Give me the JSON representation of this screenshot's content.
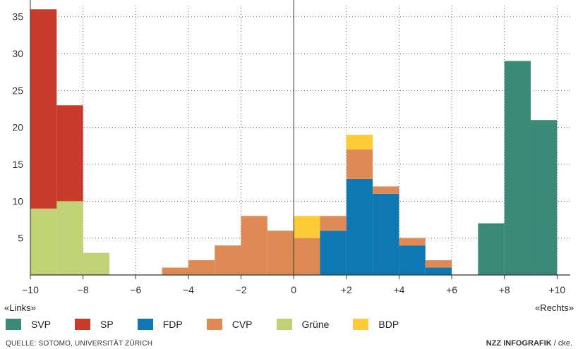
{
  "chart_data": {
    "type": "bar",
    "stacked": true,
    "xlim": [
      -10,
      10.5
    ],
    "ylim": [
      0,
      36.5
    ],
    "x_ticks": [
      {
        "value": -10,
        "label": "−10"
      },
      {
        "value": -8,
        "label": "−8"
      },
      {
        "value": -6,
        "label": "−6"
      },
      {
        "value": -4,
        "label": "−4"
      },
      {
        "value": -2,
        "label": "−2"
      },
      {
        "value": 0,
        "label": "0"
      },
      {
        "value": 2,
        "label": "+2"
      },
      {
        "value": 4,
        "label": "+4"
      },
      {
        "value": 6,
        "label": "+6"
      },
      {
        "value": 8,
        "label": "+8"
      },
      {
        "value": 10,
        "label": "+10"
      }
    ],
    "y_ticks": [
      5,
      10,
      15,
      20,
      25,
      30,
      35
    ],
    "grid": true,
    "left_label": "«Links»",
    "right_label": "«Rechts»",
    "series": [
      {
        "name": "SVP",
        "color": "#3b8a78",
        "bins": [
          [
            7,
            8,
            7
          ],
          [
            8,
            9,
            29
          ],
          [
            9,
            10,
            21
          ]
        ]
      },
      {
        "name": "SP",
        "color": "#c83a2a",
        "bins": [
          [
            -10,
            -9,
            27
          ],
          [
            -9,
            -8,
            13
          ]
        ]
      },
      {
        "name": "FDP",
        "color": "#0f77b4",
        "bins": [
          [
            1,
            2,
            6
          ],
          [
            2,
            3,
            13
          ],
          [
            3,
            4,
            11
          ],
          [
            4,
            5,
            4
          ],
          [
            5,
            6,
            1
          ]
        ]
      },
      {
        "name": "CVP",
        "color": "#df8a55",
        "bins": [
          [
            -5,
            -4,
            1
          ],
          [
            -4,
            -3,
            2
          ],
          [
            -3,
            -2,
            4
          ],
          [
            -2,
            -1,
            8
          ],
          [
            -1,
            0,
            6
          ],
          [
            0,
            1,
            5
          ],
          [
            1,
            2,
            2
          ],
          [
            2,
            3,
            4
          ],
          [
            3,
            4,
            1
          ],
          [
            4,
            5,
            1
          ],
          [
            5,
            6,
            1
          ]
        ]
      },
      {
        "name": "Grüne",
        "color": "#c1d276",
        "bins": [
          [
            -10,
            -9,
            9
          ],
          [
            -9,
            -8,
            10
          ],
          [
            -8,
            -7,
            3
          ]
        ]
      },
      {
        "name": "BDP",
        "color": "#fbcb38",
        "bins": [
          [
            0,
            1,
            3
          ],
          [
            2,
            3,
            2
          ]
        ]
      }
    ],
    "stack_order_bottom_to_top": [
      "Grüne",
      "FDP",
      "SVP",
      "CVP",
      "SP",
      "BDP"
    ]
  },
  "footer": {
    "source": "QUELLE: SOTOMO, UNIVERSITÄT ZÜRICH",
    "brand": "NZZ INFOGRAFIK",
    "author": " / cke."
  }
}
